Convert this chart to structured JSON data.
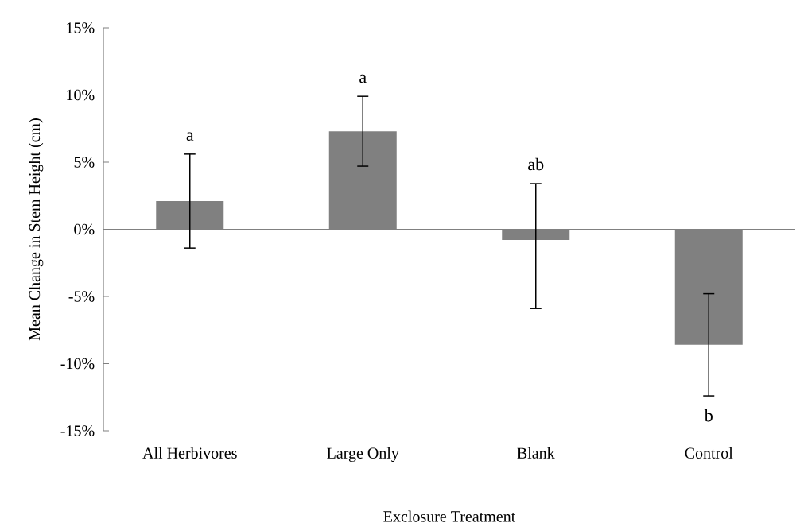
{
  "chart_data": {
    "type": "bar",
    "xlabel": "Exclosure Treatment",
    "ylabel": "Mean Change in Stem Height (cm)",
    "categories": [
      "All Herbivores",
      "Large Only",
      "Blank",
      "Control"
    ],
    "values": [
      2.1,
      7.3,
      -0.8,
      -8.6
    ],
    "errors": [
      3.5,
      2.6,
      [
        -5.9,
        3.4
      ],
      3.8
    ],
    "color": "#808080",
    "ylim": [
      -15,
      15
    ],
    "yticks": [
      {
        "value": -15,
        "label": "-15%"
      },
      {
        "value": -10,
        "label": "-10%"
      },
      {
        "value": -5,
        "label": "-5%"
      },
      {
        "value": 0,
        "label": "0%"
      },
      {
        "value": 5,
        "label": "5%"
      },
      {
        "value": 10,
        "label": "10%"
      },
      {
        "value": 15,
        "label": "15%"
      }
    ],
    "annotations": [
      "a",
      "a",
      "ab",
      "b"
    ]
  }
}
